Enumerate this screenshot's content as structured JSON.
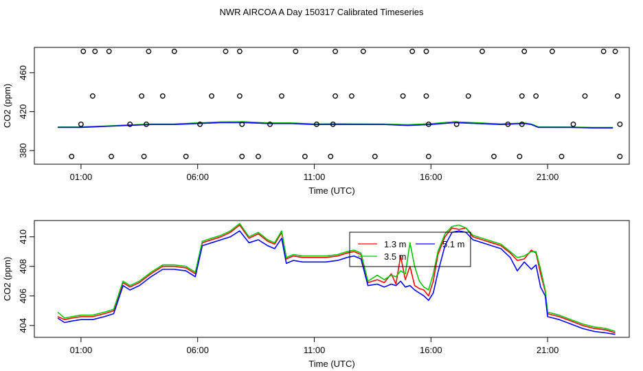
{
  "title": "NWR AIRCOA A  Day 150317  Calibrated Timeseries",
  "colors": {
    "series_13": "#ff0000",
    "series_35": "#00c800",
    "series_51": "#0000ff",
    "axis": "#000000"
  },
  "chart_data": [
    {
      "type": "line",
      "panel": "top",
      "xlabel": "Time (UTC)",
      "ylabel": "CO2 (ppm)",
      "x_unit": "hours UTC",
      "xlim": [
        -1.0,
        24.5
      ],
      "ylim": [
        366,
        486
      ],
      "xticks": [
        1,
        6,
        11,
        16,
        21
      ],
      "xtick_labels": [
        "01:00",
        "06:00",
        "11:00",
        "16:00",
        "21:00"
      ],
      "yticks": [
        380,
        420,
        460
      ],
      "ytick_labels": [
        "380",
        "420",
        "460"
      ],
      "series": [
        {
          "name": "1.3 m",
          "color": "#ff0000",
          "x": [
            0,
            1,
            2,
            3,
            4,
            5,
            6,
            7,
            8,
            9,
            10,
            11,
            12,
            13,
            14,
            15,
            16,
            17,
            18,
            19,
            20,
            20.3,
            20.6,
            22,
            23,
            23.8
          ],
          "y": [
            404,
            404,
            405,
            406,
            407,
            407,
            408,
            409,
            409,
            408,
            408,
            407,
            407,
            407,
            407,
            406,
            407,
            409,
            408,
            407,
            408,
            407,
            404,
            404,
            403.5,
            403.5
          ]
        },
        {
          "name": "3.5 m",
          "color": "#00c800",
          "x": [
            0,
            1,
            2,
            3,
            4,
            5,
            6,
            7,
            8,
            9,
            10,
            11,
            12,
            13,
            14,
            15,
            16,
            17,
            18,
            19,
            20,
            20.3,
            20.6,
            22,
            23,
            23.8
          ],
          "y": [
            404.2,
            404.3,
            405.2,
            406.3,
            407.3,
            407.4,
            408.4,
            409.5,
            409.6,
            408.4,
            408.4,
            407.4,
            407.5,
            407.4,
            407.3,
            406.6,
            407.6,
            409.6,
            408.5,
            407.4,
            408.3,
            407.3,
            404.3,
            404.2,
            403.7,
            403.7
          ]
        },
        {
          "name": "5.1 m",
          "color": "#0000ff",
          "x": [
            0,
            1,
            2,
            3,
            4,
            5,
            6,
            7,
            8,
            9,
            10,
            11,
            12,
            13,
            14,
            15,
            16,
            17,
            18,
            19,
            20,
            20.3,
            20.6,
            22,
            23,
            23.8
          ],
          "y": [
            403.8,
            403.8,
            404.8,
            405.8,
            406.8,
            406.8,
            407.8,
            408.8,
            408.8,
            407.8,
            407.8,
            406.8,
            406.8,
            406.8,
            406.8,
            405.8,
            406.8,
            408.8,
            407.8,
            406.8,
            407.8,
            406.8,
            403.8,
            403.8,
            403.3,
            403.3
          ]
        }
      ],
      "markers": {
        "symbol": "open-circle",
        "x": [
          1.1,
          1.6,
          2.2,
          3.9,
          5.0,
          7.2,
          7.8,
          10.2,
          11.9,
          13.1,
          15.2,
          15.8,
          18.2,
          20.0,
          21.2,
          23.4,
          23.9,
          1.5,
          3.6,
          4.5,
          6.6,
          7.8,
          9.6,
          11.9,
          12.6,
          14.8,
          15.8,
          17.6,
          19.9,
          20.5,
          22.6,
          24.0,
          1.0,
          3.1,
          3.8,
          6.1,
          7.9,
          9.1,
          11.1,
          11.8,
          15.9,
          17.1,
          19.3,
          19.9,
          22.1,
          24.1,
          0.6,
          2.3,
          3.7,
          5.5,
          7.9,
          8.6,
          10.6,
          11.7,
          13.6,
          15.9,
          18.7,
          19.8,
          21.6,
          24.1
        ],
        "y": [
          482,
          482,
          482,
          482,
          482,
          482,
          482,
          482,
          482,
          482,
          482,
          482,
          482,
          482,
          482,
          482,
          482,
          436,
          436,
          436,
          436,
          436,
          436,
          436,
          436,
          436,
          436,
          436,
          436,
          436,
          436,
          436,
          407,
          407,
          407,
          407,
          407,
          407,
          407,
          407,
          407,
          407,
          407,
          407,
          407,
          407,
          374,
          374,
          374,
          374,
          374,
          374,
          374,
          374,
          374,
          374,
          374,
          374,
          374,
          374
        ]
      }
    },
    {
      "type": "line",
      "panel": "bottom",
      "xlabel": "Time (UTC)",
      "ylabel": "CO2 (ppm)",
      "x_unit": "hours UTC",
      "xlim": [
        -1.0,
        24.5
      ],
      "ylim": [
        403.2,
        411.1
      ],
      "xticks": [
        1,
        6,
        11,
        16,
        21
      ],
      "xtick_labels": [
        "01:00",
        "06:00",
        "11:00",
        "16:00",
        "21:00"
      ],
      "yticks": [
        404,
        406,
        408,
        410
      ],
      "ytick_labels": [
        "404",
        "406",
        "408",
        "410"
      ],
      "legend": {
        "placement": "top-center",
        "entries": [
          "1.3 m",
          "3.5 m",
          "5.1 m"
        ]
      },
      "series": [
        {
          "name": "1.3 m",
          "color": "#ff0000",
          "x": [
            0,
            0.3,
            0.6,
            1.0,
            1.5,
            2.0,
            2.4,
            2.8,
            3.1,
            3.5,
            4.0,
            4.5,
            5.0,
            5.5,
            5.9,
            6.2,
            6.6,
            7.0,
            7.4,
            7.8,
            8.2,
            8.6,
            9.0,
            9.3,
            9.6,
            9.8,
            10.1,
            10.5,
            11.0,
            11.5,
            12.0,
            12.4,
            12.7,
            13.0,
            13.3,
            13.7,
            14.0,
            14.3,
            14.5,
            14.7,
            14.9,
            15.1,
            15.3,
            15.5,
            15.7,
            15.9,
            16.1,
            16.3,
            16.6,
            16.9,
            17.2,
            17.5,
            17.8,
            18.2,
            18.6,
            19.0,
            19.4,
            19.7,
            20.0,
            20.3,
            20.5,
            20.7,
            20.9,
            21.0,
            21.5,
            22.0,
            22.5,
            23.0,
            23.5,
            23.9
          ],
          "y": [
            404.6,
            404.4,
            404.5,
            404.6,
            404.6,
            404.8,
            405.0,
            406.9,
            406.6,
            406.9,
            407.5,
            408.0,
            408.0,
            407.9,
            407.5,
            409.6,
            409.8,
            410.0,
            410.3,
            410.8,
            409.9,
            410.2,
            409.7,
            409.5,
            410.3,
            408.5,
            408.7,
            408.6,
            408.6,
            408.6,
            408.7,
            408.9,
            409.0,
            408.8,
            406.9,
            407.1,
            406.9,
            407.5,
            406.8,
            408.7,
            407.1,
            408.0,
            406.7,
            406.5,
            406.4,
            406.0,
            407.0,
            408.8,
            410.0,
            410.6,
            410.5,
            410.6,
            410.0,
            409.8,
            409.6,
            409.4,
            408.9,
            408.4,
            408.5,
            409.1,
            408.9,
            407.5,
            406.3,
            404.8,
            404.6,
            404.3,
            404.0,
            403.8,
            403.7,
            403.5
          ]
        },
        {
          "name": "3.5 m",
          "color": "#00c800",
          "x": [
            0,
            0.3,
            0.6,
            1.0,
            1.5,
            2.0,
            2.4,
            2.8,
            3.1,
            3.5,
            4.0,
            4.5,
            5.0,
            5.5,
            5.9,
            6.2,
            6.6,
            7.0,
            7.4,
            7.8,
            8.2,
            8.6,
            9.0,
            9.3,
            9.6,
            9.8,
            10.1,
            10.5,
            11.0,
            11.5,
            12.0,
            12.4,
            12.7,
            13.0,
            13.3,
            13.7,
            14.0,
            14.3,
            14.5,
            14.7,
            14.9,
            15.1,
            15.3,
            15.5,
            15.7,
            15.9,
            16.1,
            16.3,
            16.6,
            16.9,
            17.2,
            17.5,
            17.8,
            18.2,
            18.6,
            19.0,
            19.4,
            19.7,
            20.0,
            20.3,
            20.5,
            20.7,
            20.9,
            21.0,
            21.5,
            22.0,
            22.5,
            23.0,
            23.5,
            23.9
          ],
          "y": [
            404.9,
            404.5,
            404.6,
            404.7,
            404.7,
            404.9,
            405.1,
            407.0,
            406.7,
            407.0,
            407.6,
            408.1,
            408.1,
            408.0,
            407.6,
            409.7,
            409.9,
            410.1,
            410.4,
            410.9,
            410.0,
            410.3,
            409.8,
            409.6,
            410.4,
            408.6,
            408.8,
            408.7,
            408.7,
            408.7,
            408.8,
            409.0,
            409.1,
            408.9,
            407.0,
            407.4,
            407.1,
            407.4,
            407.3,
            407.7,
            407.5,
            409.6,
            408.0,
            407.0,
            406.6,
            406.4,
            407.5,
            409.0,
            410.2,
            410.7,
            410.8,
            410.6,
            410.1,
            409.9,
            409.7,
            409.5,
            409.0,
            408.6,
            408.7,
            409.0,
            409.0,
            407.8,
            406.4,
            404.9,
            404.7,
            404.4,
            404.1,
            403.9,
            403.8,
            403.6
          ]
        },
        {
          "name": "5.1 m",
          "color": "#0000ff",
          "x": [
            0,
            0.3,
            0.6,
            1.0,
            1.5,
            2.0,
            2.4,
            2.8,
            3.1,
            3.5,
            4.0,
            4.5,
            5.0,
            5.5,
            5.9,
            6.2,
            6.6,
            7.0,
            7.4,
            7.8,
            8.2,
            8.6,
            9.0,
            9.3,
            9.6,
            9.8,
            10.1,
            10.5,
            11.0,
            11.5,
            12.0,
            12.4,
            12.7,
            13.0,
            13.3,
            13.7,
            14.0,
            14.3,
            14.5,
            14.7,
            14.9,
            15.1,
            15.3,
            15.5,
            15.7,
            15.9,
            16.1,
            16.3,
            16.6,
            16.9,
            17.2,
            17.5,
            17.8,
            18.2,
            18.6,
            19.0,
            19.4,
            19.7,
            20.0,
            20.3,
            20.5,
            20.7,
            20.9,
            21.0,
            21.5,
            22.0,
            22.5,
            23.0,
            23.5,
            23.9
          ],
          "y": [
            404.5,
            404.2,
            404.3,
            404.4,
            404.4,
            404.6,
            404.8,
            406.7,
            406.4,
            406.7,
            407.3,
            407.8,
            407.8,
            407.7,
            407.3,
            409.4,
            409.6,
            409.8,
            410.0,
            410.4,
            409.6,
            409.8,
            409.4,
            409.2,
            409.9,
            408.2,
            408.4,
            408.3,
            408.3,
            408.3,
            408.4,
            408.6,
            408.7,
            408.5,
            406.7,
            406.8,
            406.6,
            406.8,
            406.7,
            407.0,
            406.6,
            406.7,
            406.4,
            406.2,
            406.0,
            405.7,
            406.2,
            407.6,
            409.4,
            410.3,
            410.4,
            410.3,
            409.8,
            409.6,
            409.4,
            409.2,
            408.6,
            407.7,
            408.3,
            407.8,
            408.1,
            406.6,
            406.0,
            404.6,
            404.4,
            404.1,
            403.8,
            403.6,
            403.5,
            403.4
          ]
        }
      ]
    }
  ]
}
